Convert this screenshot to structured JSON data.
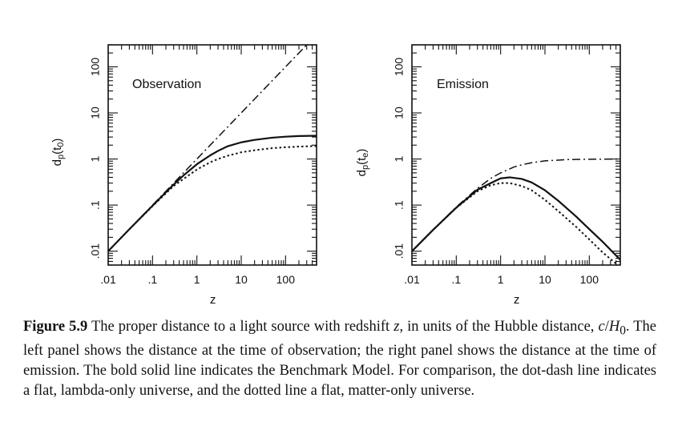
{
  "chart_data": [
    {
      "type": "line",
      "title": "Observation",
      "xlabel": "z",
      "ylabel": "d_p(t_0)",
      "xscale": "log",
      "yscale": "log",
      "xlim": [
        0.01,
        500
      ],
      "ylim": [
        0.005,
        300
      ],
      "xticks": [
        ".01",
        ".1",
        "1",
        "10",
        "100"
      ],
      "yticks": [
        ".01",
        ".1",
        "1",
        "10",
        "100"
      ],
      "series": [
        {
          "style": "solid",
          "x": [
            0.01,
            0.03,
            0.1,
            0.2,
            0.3,
            0.5,
            1,
            2,
            3,
            5,
            10,
            20,
            50,
            100,
            200,
            500
          ],
          "y": [
            0.01,
            0.03,
            0.097,
            0.19,
            0.28,
            0.44,
            0.77,
            1.2,
            1.5,
            1.9,
            2.3,
            2.6,
            2.9,
            3.05,
            3.15,
            3.2
          ]
        },
        {
          "style": "dot-dash",
          "x": [
            0.01,
            0.1,
            1,
            10,
            100,
            500
          ],
          "y": [
            0.01,
            0.1,
            1,
            10,
            100,
            500
          ]
        },
        {
          "style": "dotted",
          "x": [
            0.01,
            0.03,
            0.1,
            0.2,
            0.3,
            0.5,
            1,
            2,
            3,
            5,
            10,
            20,
            50,
            100,
            200,
            500
          ],
          "y": [
            0.01,
            0.03,
            0.095,
            0.18,
            0.26,
            0.37,
            0.59,
            0.85,
            1.0,
            1.18,
            1.4,
            1.55,
            1.72,
            1.8,
            1.86,
            1.91
          ]
        }
      ]
    },
    {
      "type": "line",
      "title": "Emission",
      "xlabel": "z",
      "ylabel": "d_p(t_e)",
      "xscale": "log",
      "yscale": "log",
      "xlim": [
        0.01,
        500
      ],
      "ylim": [
        0.005,
        300
      ],
      "xticks": [
        ".01",
        ".1",
        "1",
        "10",
        "100"
      ],
      "yticks": [
        ".01",
        ".1",
        "1",
        "10",
        "100"
      ],
      "series": [
        {
          "style": "solid",
          "x": [
            0.01,
            0.03,
            0.1,
            0.3,
            0.6,
            1,
            1.6,
            3,
            5,
            10,
            20,
            50,
            100,
            200,
            500
          ],
          "y": [
            0.01,
            0.029,
            0.088,
            0.215,
            0.3,
            0.38,
            0.4,
            0.37,
            0.31,
            0.21,
            0.124,
            0.057,
            0.03,
            0.016,
            0.0065
          ]
        },
        {
          "style": "dot-dash",
          "x": [
            0.01,
            0.03,
            0.1,
            0.3,
            0.6,
            1,
            2,
            3,
            5,
            10,
            30,
            100,
            500
          ],
          "y": [
            0.01,
            0.029,
            0.091,
            0.23,
            0.38,
            0.5,
            0.67,
            0.75,
            0.83,
            0.91,
            0.97,
            0.99,
            1.0
          ]
        },
        {
          "style": "dotted",
          "x": [
            0.01,
            0.03,
            0.1,
            0.3,
            0.6,
            1,
            1.6,
            3,
            5,
            10,
            20,
            50,
            100,
            200,
            500
          ],
          "y": [
            0.01,
            0.029,
            0.087,
            0.2,
            0.27,
            0.3,
            0.3,
            0.26,
            0.21,
            0.13,
            0.074,
            0.034,
            0.018,
            0.0094,
            0.0045
          ]
        }
      ]
    }
  ],
  "caption": {
    "label": "Figure 5.9",
    "text_1": " The proper distance to a light source with redshift ",
    "z": "z",
    "text_2": ", in units of the Hubble distance, ",
    "c": "c",
    "slash": "/",
    "h": "H",
    "sub": "0",
    "text_3": ". The left panel shows the distance at the time of observation; the right panel shows the distance at the time of emission. The bold solid line indicates the Benchmark Model. For comparison, the dot-dash line indicates a flat, lambda-only universe, and the dotted line a flat, matter-only universe."
  }
}
